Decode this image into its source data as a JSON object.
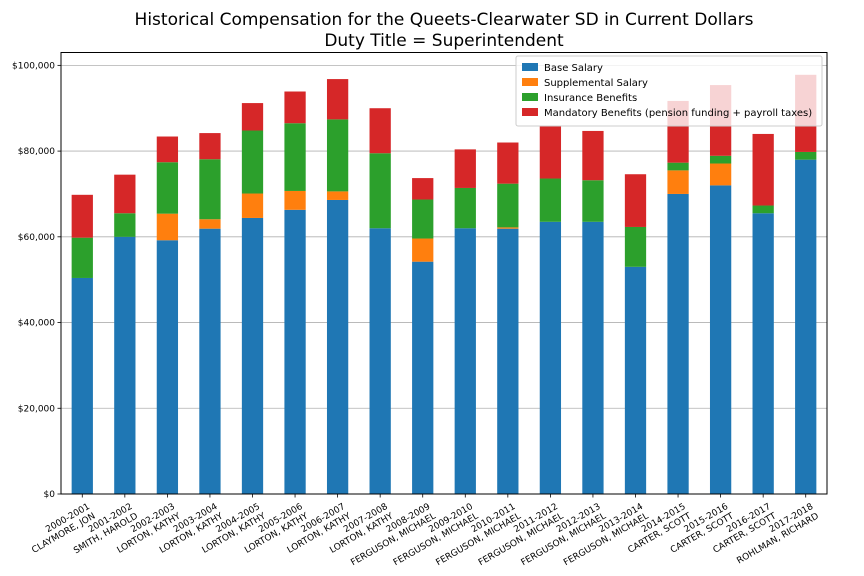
{
  "chart_data": {
    "type": "bar",
    "stacked": true,
    "title": "Historical Compensation for the Queets-Clearwater SD in Current Dollars",
    "subtitle": "Duty Title = Superintendent",
    "xlabel": "",
    "ylabel": "",
    "ylim": [
      0,
      103000
    ],
    "yticks": [
      0,
      20000,
      40000,
      60000,
      80000,
      100000
    ],
    "ytick_labels": [
      "$0",
      "$20,000",
      "$40,000",
      "$60,000",
      "$80,000",
      "$100,000"
    ],
    "grid": "horizontal",
    "legend_position": "top-right",
    "categories": [
      {
        "year": "2000-2001",
        "name": "CLAYMORE, JON"
      },
      {
        "year": "2001-2002",
        "name": "SMITH, HAROLD"
      },
      {
        "year": "2002-2003",
        "name": "LORTON, KATHY"
      },
      {
        "year": "2003-2004",
        "name": "LORTON, KATHY"
      },
      {
        "year": "2004-2005",
        "name": "LORTON, KATHY"
      },
      {
        "year": "2005-2006",
        "name": "LORTON, KATHY"
      },
      {
        "year": "2006-2007",
        "name": "LORTON, KATHY"
      },
      {
        "year": "2007-2008",
        "name": "LORTON, KATHY"
      },
      {
        "year": "2008-2009",
        "name": "FERGUSON, MICHAEL"
      },
      {
        "year": "2009-2010",
        "name": "FERGUSON, MICHAEL"
      },
      {
        "year": "2010-2011",
        "name": "FERGUSON, MICHAEL"
      },
      {
        "year": "2011-2012",
        "name": "FERGUSON, MICHAEL"
      },
      {
        "year": "2012-2013",
        "name": "FERGUSON, MICHAEL"
      },
      {
        "year": "2013-2014",
        "name": "FERGUSON, MICHAEL"
      },
      {
        "year": "2014-2015",
        "name": "CARTER, SCOTT"
      },
      {
        "year": "2015-2016",
        "name": "CARTER, SCOTT"
      },
      {
        "year": "2016-2017",
        "name": "CARTER, SCOTT"
      },
      {
        "year": "2017-2018",
        "name": "ROHLMAN, RICHARD"
      }
    ],
    "series": [
      {
        "name": "Base Salary",
        "color": "#1f77b4",
        "values": [
          50400,
          60000,
          59200,
          61900,
          64400,
          66300,
          68600,
          62000,
          54200,
          62000,
          61900,
          63500,
          63500,
          53000,
          70000,
          72000,
          65500,
          78000
        ]
      },
      {
        "name": "Supplemental Salary",
        "color": "#ff7f0e",
        "values": [
          0,
          0,
          6200,
          2200,
          5700,
          4400,
          2000,
          0,
          5400,
          0,
          300,
          0,
          0,
          0,
          5500,
          5100,
          0,
          0
        ]
      },
      {
        "name": "Insurance Benefits",
        "color": "#2ca02c",
        "values": [
          9400,
          5500,
          12000,
          14000,
          14700,
          15800,
          16800,
          17500,
          9100,
          9400,
          10200,
          10100,
          9700,
          9300,
          1800,
          1800,
          1800,
          1800
        ]
      },
      {
        "name": "Mandatory Benefits (pension funding + payroll taxes)",
        "color": "#d62728",
        "values": [
          10000,
          9000,
          6000,
          6100,
          6400,
          7400,
          9400,
          10500,
          5000,
          9000,
          9600,
          12200,
          11500,
          12300,
          14400,
          16500,
          16700,
          18000
        ]
      }
    ]
  }
}
